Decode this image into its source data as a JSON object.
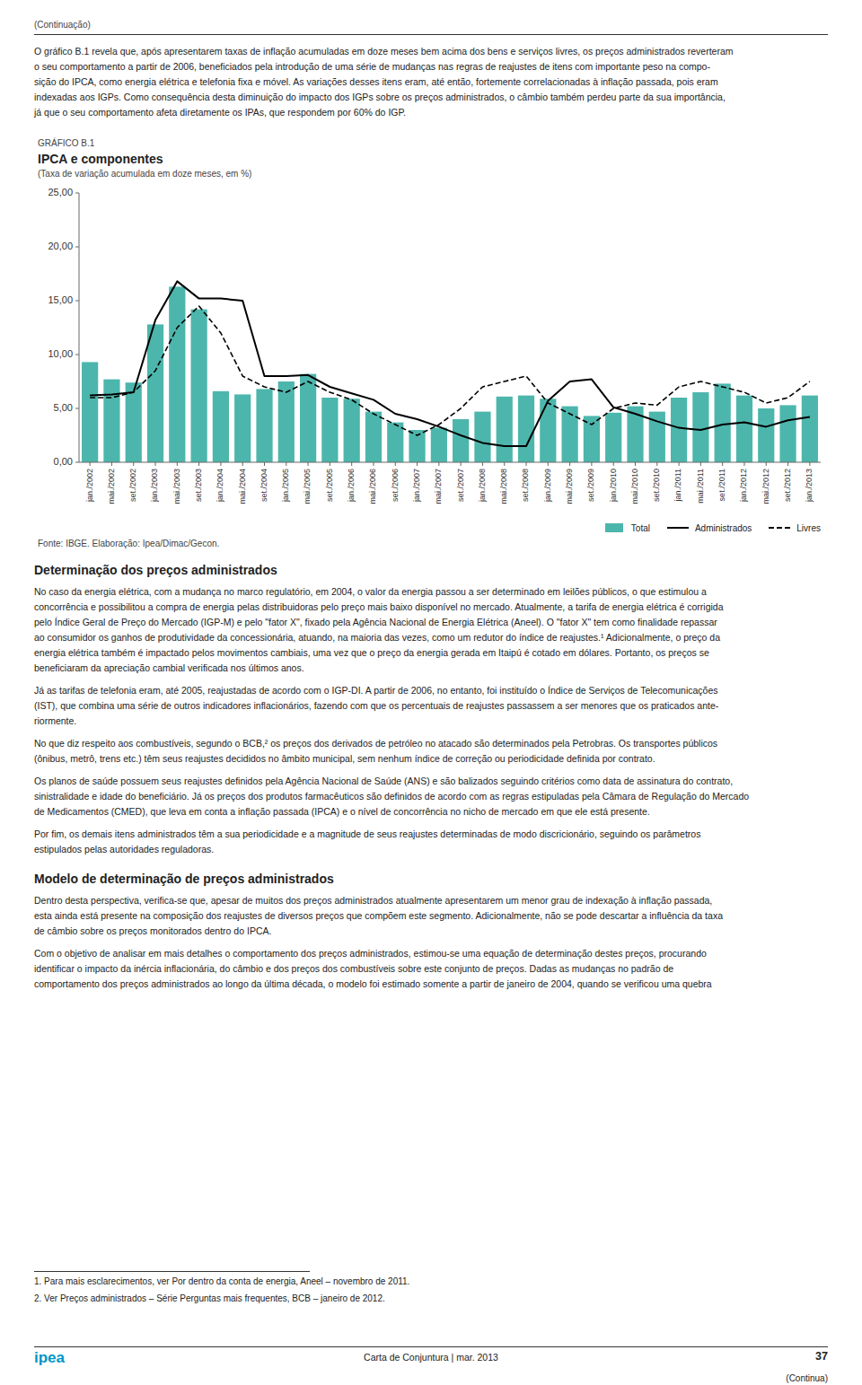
{
  "chart_data": {
    "type": "bar",
    "chart_label": "GRÁFICO B.1",
    "title": "IPCA e componentes",
    "subtitle": "(Taxa de variação acumulada em doze meses, em %)",
    "source": "Fonte: IBGE. Elaboração: Ipea/Dimac/Gecon.",
    "categories": [
      "jan./2002",
      "mai./2002",
      "set./2002",
      "jan./2003",
      "mai./2003",
      "set./2003",
      "jan./2004",
      "mai./2004",
      "set./2004",
      "jan./2005",
      "mai./2005",
      "set./2005",
      "jan./2006",
      "mai./2006",
      "set./2006",
      "jan./2007",
      "mai./2007",
      "set./2007",
      "jan./2008",
      "mai./2008",
      "set./2008",
      "jan./2009",
      "mai./2009",
      "set./2009",
      "jan./2010",
      "mai./2010",
      "set./2010",
      "jan./2011",
      "mai./2011",
      "set./2011",
      "jan./2012",
      "mai./2012",
      "set./2012",
      "jan./2013"
    ],
    "series": [
      {
        "name": "Total",
        "type": "bar",
        "color": "#4DB6AC",
        "values": [
          9.3,
          7.7,
          7.4,
          12.8,
          16.3,
          14.2,
          6.6,
          6.3,
          6.8,
          7.5,
          8.2,
          6.0,
          5.9,
          4.7,
          3.7,
          3.0,
          3.2,
          4.0,
          4.7,
          6.1,
          6.2,
          5.9,
          5.2,
          4.3,
          4.6,
          5.2,
          4.7,
          6.0,
          6.5,
          7.3,
          6.2,
          5.0,
          5.3,
          6.2
        ]
      },
      {
        "name": "Administrados",
        "type": "line",
        "color": "#000000",
        "line_style": "solid",
        "values": [
          6.2,
          6.3,
          6.5,
          13.2,
          16.8,
          15.2,
          15.2,
          15.0,
          8.0,
          8.0,
          8.1,
          7.0,
          6.4,
          5.8,
          4.5,
          4.0,
          3.3,
          2.5,
          1.8,
          1.5,
          1.5,
          5.7,
          7.5,
          7.7,
          5.1,
          4.5,
          3.8,
          3.2,
          3.0,
          3.5,
          3.7,
          3.3,
          3.9,
          4.2
        ]
      },
      {
        "name": "Livres",
        "type": "line",
        "color": "#000000",
        "line_style": "dashed",
        "values": [
          6.0,
          6.0,
          6.5,
          8.5,
          12.5,
          14.5,
          12.0,
          8.0,
          7.0,
          6.5,
          7.5,
          6.5,
          5.8,
          4.5,
          3.5,
          2.5,
          3.5,
          5.0,
          7.0,
          7.5,
          8.0,
          5.5,
          4.5,
          3.5,
          5.0,
          5.5,
          5.3,
          7.0,
          7.5,
          7.0,
          6.5,
          5.5,
          6.0,
          7.5
        ]
      }
    ],
    "ylim": [
      0,
      25
    ],
    "yticks": [
      {
        "value": 0,
        "label": "0,00"
      },
      {
        "value": 5,
        "label": "5,00"
      },
      {
        "value": 10,
        "label": "10,00"
      },
      {
        "value": 15,
        "label": "15,00"
      },
      {
        "value": 20,
        "label": "20,00"
      },
      {
        "value": 25,
        "label": "25,00"
      }
    ],
    "grid": false,
    "legend": "lower right"
  },
  "page": {
    "header": "(Continuação)",
    "intro": [
      "O gráfico B.1 revela que, após apresentarem taxas de inflação acumuladas em doze meses bem acima dos bens e serviços livres, os preços administrados reverteram",
      "o seu comportamento a partir de 2006, beneficiados pela introdução de uma série de mudanças nas regras de reajustes de itens com importante peso na compo-",
      "sição do IPCA, como energia elétrica e telefonia fixa e móvel. As variações desses itens eram, até então, fortemente correlacionadas à inflação passada, pois eram",
      "indexadas aos IGPs. Como consequência desta diminuição do impacto dos IGPs sobre os preços administrados, o câmbio também perdeu parte da sua importância,",
      "já que o seu comportamento afeta diretamente os IPAs, que respondem por 60% do IGP."
    ],
    "blocks": [
      {
        "heading": "Determinação dos preços administrados"
      },
      {
        "lines": [
          "No caso da energia elétrica, com a mudança no marco regulatório, em 2004, o valor da energia passou a ser determinado em leilões públicos, o que estimulou a",
          "concorrência e possibilitou a compra de energia pelas distribuidoras pelo preço mais baixo disponível no mercado. Atualmente, a tarifa de energia elétrica é corrigida",
          "pelo Índice Geral de Preço do Mercado (IGP-M) e pelo \"fator X\", fixado pela Agência Nacional de Energia Elétrica (Aneel). O \"fator X\" tem como finalidade repassar",
          "ao consumidor os ganhos de produtividade da concessionária, atuando, na maioria das vezes, como um redutor do índice de reajustes.¹ Adicionalmente, o preço da",
          "energia elétrica também é impactado pelos movimentos cambiais, uma vez que o preço da energia gerada em Itaipú é cotado em dólares. Portanto, os preços se",
          "beneficiaram da apreciação cambial verificada nos últimos anos."
        ]
      },
      {
        "lines": [
          "Já as tarifas de telefonia eram, até 2005, reajustadas de acordo com o IGP-DI. A partir de 2006, no entanto, foi instituído o Índice de Serviços de Telecomunicações",
          "(IST), que combina uma série de outros indicadores inflacionários, fazendo com que os percentuais de reajustes passassem a ser menores que os praticados ante-",
          "riormente."
        ]
      },
      {
        "lines": [
          "No que diz respeito aos combustíveis, segundo o BCB,² os preços dos derivados de petróleo no atacado são determinados pela Petrobras. Os transportes públicos",
          "(ônibus, metrô, trens etc.) têm seus reajustes decididos no âmbito municipal, sem nenhum índice de correção ou periodicidade definida por contrato."
        ]
      },
      {
        "lines": [
          "Os planos de saúde possuem seus reajustes definidos pela Agência Nacional de Saúde (ANS) e são balizados seguindo critérios como data de assinatura do contrato,",
          "sinistralidade e idade do beneficiário. Já os preços dos produtos farmacêuticos são definidos de acordo com as regras estipuladas pela Câmara de Regulação do Mercado",
          "de Medicamentos (CMED), que leva em conta a inflação passada (IPCA) e o nível de concorrência no nicho de mercado em que ele está presente."
        ]
      },
      {
        "lines": [
          "Por fim, os demais itens administrados têm a sua periodicidade e a magnitude de seus reajustes determinadas de modo discricionário, seguindo os parâmetros",
          "estipulados pelas autoridades reguladoras."
        ]
      },
      {
        "heading": "Modelo de determinação de preços administrados"
      },
      {
        "lines": [
          "Dentro desta perspectiva, verifica-se que, apesar de muitos dos preços administrados atualmente apresentarem um menor grau de indexação à inflação passada,",
          "esta ainda está presente na composição dos reajustes de diversos preços que compõem este segmento. Adicionalmente, não se pode descartar a influência da taxa",
          "de câmbio sobre os preços monitorados dentro do IPCA."
        ]
      },
      {
        "lines": [
          "Com o objetivo de analisar em mais detalhes o comportamento dos preços administrados, estimou-se uma equação de determinação destes preços, procurando",
          "identificar o impacto da inércia inflacionária, do câmbio e dos preços dos combustíveis sobre este conjunto de preços. Dadas as mudanças no padrão de",
          "comportamento dos preços administrados ao longo da última década, o modelo foi estimado somente a partir de janeiro de 2004, quando se verificou uma quebra"
        ]
      }
    ],
    "footnotes": [
      "1. Para mais esclarecimentos, ver Por dentro da conta de energia, Aneel – novembro de 2011.",
      "2. Ver Preços administrados – Série Perguntas mais frequentes, BCB – janeiro de 2012."
    ],
    "footer_left": "ipea",
    "footer_left_color": "#0096C8",
    "footer_center": "Carta de Conjuntura | mar. 2013",
    "footer_right": "37",
    "footer_end": "(Continua)"
  }
}
